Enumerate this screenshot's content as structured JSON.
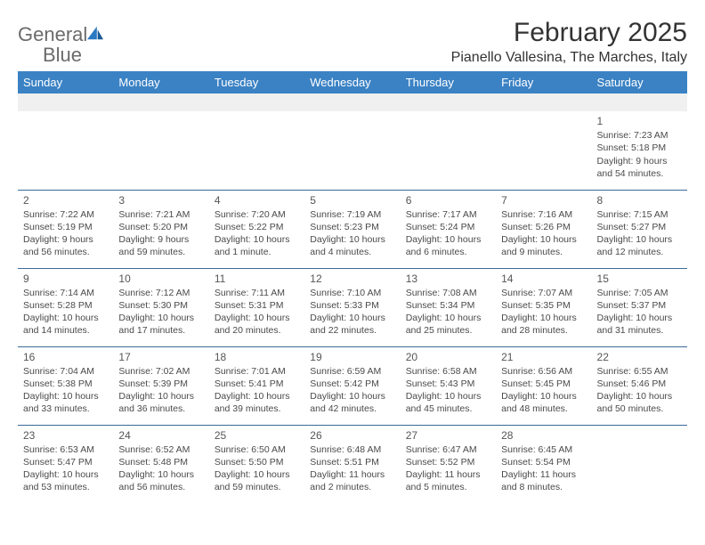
{
  "brand": {
    "part1": "General",
    "part2": "Blue"
  },
  "title": "February 2025",
  "location": "Pianello Vallesina, The Marches, Italy",
  "day_headers": [
    "Sunday",
    "Monday",
    "Tuesday",
    "Wednesday",
    "Thursday",
    "Friday",
    "Saturday"
  ],
  "colors": {
    "header_bg": "#3b82c4",
    "header_text": "#ffffff",
    "border": "#3b6a9a",
    "first_row_bg": "#f0f0f0",
    "text": "#4a4a4a",
    "logo_gray": "#6b6b6b",
    "logo_blue": "#2b79c2"
  },
  "weeks": [
    [
      null,
      null,
      null,
      null,
      null,
      null,
      {
        "n": "1",
        "sunrise": "Sunrise: 7:23 AM",
        "sunset": "Sunset: 5:18 PM",
        "day1": "Daylight: 9 hours",
        "day2": "and 54 minutes."
      }
    ],
    [
      {
        "n": "2",
        "sunrise": "Sunrise: 7:22 AM",
        "sunset": "Sunset: 5:19 PM",
        "day1": "Daylight: 9 hours",
        "day2": "and 56 minutes."
      },
      {
        "n": "3",
        "sunrise": "Sunrise: 7:21 AM",
        "sunset": "Sunset: 5:20 PM",
        "day1": "Daylight: 9 hours",
        "day2": "and 59 minutes."
      },
      {
        "n": "4",
        "sunrise": "Sunrise: 7:20 AM",
        "sunset": "Sunset: 5:22 PM",
        "day1": "Daylight: 10 hours",
        "day2": "and 1 minute."
      },
      {
        "n": "5",
        "sunrise": "Sunrise: 7:19 AM",
        "sunset": "Sunset: 5:23 PM",
        "day1": "Daylight: 10 hours",
        "day2": "and 4 minutes."
      },
      {
        "n": "6",
        "sunrise": "Sunrise: 7:17 AM",
        "sunset": "Sunset: 5:24 PM",
        "day1": "Daylight: 10 hours",
        "day2": "and 6 minutes."
      },
      {
        "n": "7",
        "sunrise": "Sunrise: 7:16 AM",
        "sunset": "Sunset: 5:26 PM",
        "day1": "Daylight: 10 hours",
        "day2": "and 9 minutes."
      },
      {
        "n": "8",
        "sunrise": "Sunrise: 7:15 AM",
        "sunset": "Sunset: 5:27 PM",
        "day1": "Daylight: 10 hours",
        "day2": "and 12 minutes."
      }
    ],
    [
      {
        "n": "9",
        "sunrise": "Sunrise: 7:14 AM",
        "sunset": "Sunset: 5:28 PM",
        "day1": "Daylight: 10 hours",
        "day2": "and 14 minutes."
      },
      {
        "n": "10",
        "sunrise": "Sunrise: 7:12 AM",
        "sunset": "Sunset: 5:30 PM",
        "day1": "Daylight: 10 hours",
        "day2": "and 17 minutes."
      },
      {
        "n": "11",
        "sunrise": "Sunrise: 7:11 AM",
        "sunset": "Sunset: 5:31 PM",
        "day1": "Daylight: 10 hours",
        "day2": "and 20 minutes."
      },
      {
        "n": "12",
        "sunrise": "Sunrise: 7:10 AM",
        "sunset": "Sunset: 5:33 PM",
        "day1": "Daylight: 10 hours",
        "day2": "and 22 minutes."
      },
      {
        "n": "13",
        "sunrise": "Sunrise: 7:08 AM",
        "sunset": "Sunset: 5:34 PM",
        "day1": "Daylight: 10 hours",
        "day2": "and 25 minutes."
      },
      {
        "n": "14",
        "sunrise": "Sunrise: 7:07 AM",
        "sunset": "Sunset: 5:35 PM",
        "day1": "Daylight: 10 hours",
        "day2": "and 28 minutes."
      },
      {
        "n": "15",
        "sunrise": "Sunrise: 7:05 AM",
        "sunset": "Sunset: 5:37 PM",
        "day1": "Daylight: 10 hours",
        "day2": "and 31 minutes."
      }
    ],
    [
      {
        "n": "16",
        "sunrise": "Sunrise: 7:04 AM",
        "sunset": "Sunset: 5:38 PM",
        "day1": "Daylight: 10 hours",
        "day2": "and 33 minutes."
      },
      {
        "n": "17",
        "sunrise": "Sunrise: 7:02 AM",
        "sunset": "Sunset: 5:39 PM",
        "day1": "Daylight: 10 hours",
        "day2": "and 36 minutes."
      },
      {
        "n": "18",
        "sunrise": "Sunrise: 7:01 AM",
        "sunset": "Sunset: 5:41 PM",
        "day1": "Daylight: 10 hours",
        "day2": "and 39 minutes."
      },
      {
        "n": "19",
        "sunrise": "Sunrise: 6:59 AM",
        "sunset": "Sunset: 5:42 PM",
        "day1": "Daylight: 10 hours",
        "day2": "and 42 minutes."
      },
      {
        "n": "20",
        "sunrise": "Sunrise: 6:58 AM",
        "sunset": "Sunset: 5:43 PM",
        "day1": "Daylight: 10 hours",
        "day2": "and 45 minutes."
      },
      {
        "n": "21",
        "sunrise": "Sunrise: 6:56 AM",
        "sunset": "Sunset: 5:45 PM",
        "day1": "Daylight: 10 hours",
        "day2": "and 48 minutes."
      },
      {
        "n": "22",
        "sunrise": "Sunrise: 6:55 AM",
        "sunset": "Sunset: 5:46 PM",
        "day1": "Daylight: 10 hours",
        "day2": "and 50 minutes."
      }
    ],
    [
      {
        "n": "23",
        "sunrise": "Sunrise: 6:53 AM",
        "sunset": "Sunset: 5:47 PM",
        "day1": "Daylight: 10 hours",
        "day2": "and 53 minutes."
      },
      {
        "n": "24",
        "sunrise": "Sunrise: 6:52 AM",
        "sunset": "Sunset: 5:48 PM",
        "day1": "Daylight: 10 hours",
        "day2": "and 56 minutes."
      },
      {
        "n": "25",
        "sunrise": "Sunrise: 6:50 AM",
        "sunset": "Sunset: 5:50 PM",
        "day1": "Daylight: 10 hours",
        "day2": "and 59 minutes."
      },
      {
        "n": "26",
        "sunrise": "Sunrise: 6:48 AM",
        "sunset": "Sunset: 5:51 PM",
        "day1": "Daylight: 11 hours",
        "day2": "and 2 minutes."
      },
      {
        "n": "27",
        "sunrise": "Sunrise: 6:47 AM",
        "sunset": "Sunset: 5:52 PM",
        "day1": "Daylight: 11 hours",
        "day2": "and 5 minutes."
      },
      {
        "n": "28",
        "sunrise": "Sunrise: 6:45 AM",
        "sunset": "Sunset: 5:54 PM",
        "day1": "Daylight: 11 hours",
        "day2": "and 8 minutes."
      },
      null
    ]
  ]
}
